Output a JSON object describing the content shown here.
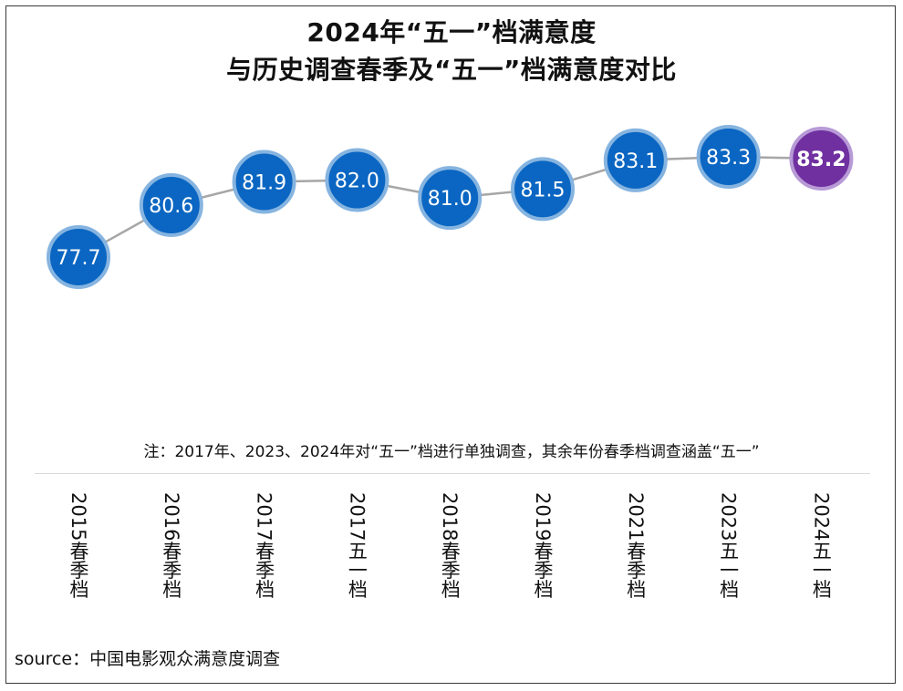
{
  "title_line1": "2024年“五一”档满意度",
  "title_line2": "与历史调查春季及“五一”档满意度对比",
  "note": "注：2017年、2023、2024年对“五一”档进行单独调查，其余年份春季档调查涵盖“五一”",
  "source": "source：中国电影观众满意度调查",
  "colors": {
    "bubble": "#0a66c2",
    "bubble_ring": "#86b4e0",
    "highlight": "#7030a0",
    "highlight_ring": "#b79ad6",
    "line": "#a6a6a6"
  },
  "chart_data": {
    "type": "line",
    "categories": [
      "2015春季档",
      "2016春季档",
      "2017春季档",
      "2017五一档",
      "2018春季档",
      "2019春季档",
      "2021春季档",
      "2023五一档",
      "2024五一档"
    ],
    "values": [
      77.7,
      80.6,
      81.9,
      82.0,
      81.0,
      81.5,
      83.1,
      83.3,
      83.2
    ],
    "value_labels": [
      "77.7",
      "80.6",
      "81.9",
      "82.0",
      "81.0",
      "81.5",
      "83.1",
      "83.3",
      "83.2"
    ],
    "highlight_index": 8,
    "ylim": [
      77.0,
      83.7
    ],
    "grid": false,
    "legend": "none"
  }
}
